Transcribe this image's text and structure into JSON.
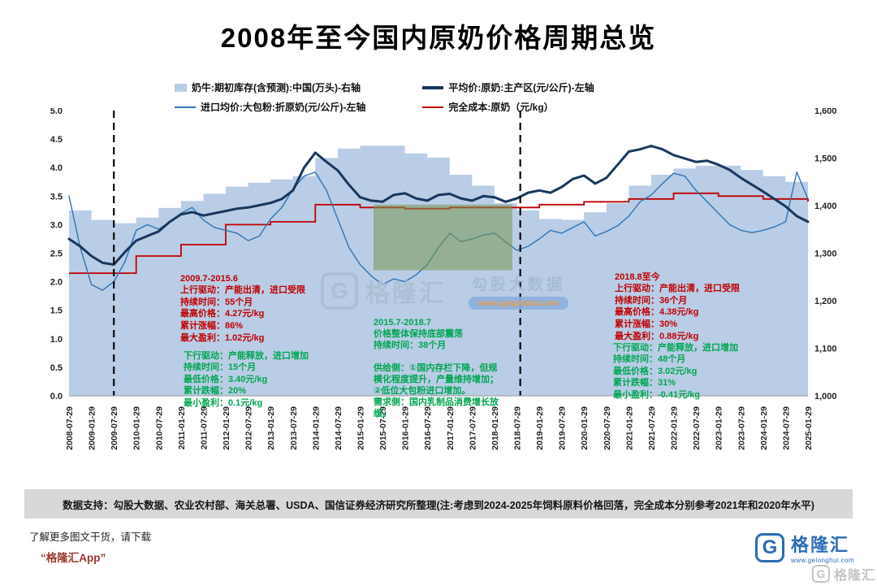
{
  "title": "2008年至今国内原奶价格周期总览",
  "chart_data": {
    "type": "combo",
    "title": "2008年至今国内原奶价格周期总览",
    "x_labels": [
      "2008-07-29",
      "2009-01-29",
      "2009-07-29",
      "2010-01-29",
      "2010-07-29",
      "2011-01-29",
      "2011-07-29",
      "2012-01-29",
      "2012-07-29",
      "2013-01-29",
      "2013-07-29",
      "2014-01-29",
      "2014-07-29",
      "2015-01-29",
      "2015-07-29",
      "2016-01-29",
      "2016-07-29",
      "2017-01-29",
      "2017-07-29",
      "2018-01-29",
      "2018-07-29",
      "2019-01-29",
      "2019-07-29",
      "2020-01-29",
      "2020-07-29",
      "2021-01-29",
      "2021-07-29",
      "2022-01-29",
      "2022-07-29",
      "2023-01-29",
      "2023-07-29",
      "2024-01-29",
      "2024-07-29",
      "2025-01-29"
    ],
    "left_axis": {
      "min": 0,
      "max": 5,
      "ticks": [
        "0.0",
        "0.5",
        "1.0",
        "1.5",
        "2.0",
        "2.5",
        "3.0",
        "3.5",
        "4.0",
        "4.5",
        "5.0"
      ],
      "tick_values": [
        0,
        0.5,
        1,
        1.5,
        2,
        2.5,
        3,
        3.5,
        4,
        4.5,
        5
      ]
    },
    "right_axis": {
      "min": 1000,
      "max": 1600,
      "ticks": [
        "1,000",
        "1,100",
        "1,200",
        "1,300",
        "1,400",
        "1,500",
        "1,600"
      ],
      "tick_values": [
        1000,
        1100,
        1200,
        1300,
        1400,
        1500,
        1600
      ]
    },
    "series": [
      {
        "name": "奶牛:期初库存(含预测):中国(万头)-右轴",
        "type": "step-area",
        "axis": "right",
        "color": "#b9cde6",
        "width": 0,
        "values": [
          1390,
          1370,
          1363,
          1375,
          1395,
          1410,
          1425,
          1440,
          1448,
          1455,
          1462,
          1500,
          1520,
          1526,
          1526,
          1510,
          1501,
          1465,
          1442,
          1405,
          1390,
          1372,
          1370,
          1386,
          1405,
          1442,
          1465,
          1478,
          1484,
          1484,
          1475,
          1462,
          1450,
          1442
        ]
      },
      {
        "name": "平均价:原奶:主产区(元/公斤)-左轴",
        "type": "line",
        "axis": "left",
        "color": "#17375e",
        "width": 3,
        "values": [
          2.75,
          2.62,
          2.45,
          2.33,
          2.3,
          2.52,
          2.72,
          2.8,
          2.88,
          3.05,
          3.18,
          3.22,
          3.16,
          3.2,
          3.24,
          3.28,
          3.3,
          3.34,
          3.38,
          3.45,
          3.6,
          4.0,
          4.26,
          4.1,
          3.95,
          3.7,
          3.48,
          3.42,
          3.4,
          3.52,
          3.55,
          3.46,
          3.42,
          3.52,
          3.54,
          3.46,
          3.42,
          3.5,
          3.48,
          3.4,
          3.46,
          3.56,
          3.6,
          3.56,
          3.66,
          3.8,
          3.86,
          3.72,
          3.82,
          4.05,
          4.28,
          4.32,
          4.38,
          4.32,
          4.22,
          4.16,
          4.1,
          4.12,
          4.05,
          3.96,
          3.82,
          3.7,
          3.58,
          3.45,
          3.32,
          3.15,
          3.05
        ]
      },
      {
        "name": "进口均价:大包粉:折原奶(元/公斤)-左轴",
        "type": "line",
        "axis": "left",
        "color": "#2e75b6",
        "width": 1.4,
        "values": [
          3.5,
          2.6,
          1.95,
          1.85,
          2.0,
          2.35,
          2.9,
          3.0,
          2.92,
          3.05,
          3.2,
          3.3,
          3.08,
          2.95,
          2.9,
          2.85,
          2.72,
          2.8,
          3.1,
          3.3,
          3.62,
          3.85,
          3.92,
          3.6,
          3.1,
          2.6,
          2.3,
          2.1,
          1.95,
          2.05,
          2.0,
          2.12,
          2.3,
          2.6,
          2.85,
          2.7,
          2.75,
          2.82,
          2.85,
          2.7,
          2.55,
          2.62,
          2.75,
          2.9,
          2.85,
          2.95,
          3.05,
          2.8,
          2.88,
          2.98,
          3.15,
          3.4,
          3.52,
          3.72,
          3.9,
          3.85,
          3.6,
          3.4,
          3.2,
          3.0,
          2.9,
          2.86,
          2.9,
          2.96,
          3.05,
          3.92,
          3.45
        ]
      },
      {
        "name": "完全成本:原奶（元/kg）",
        "type": "step-line",
        "axis": "left",
        "color": "#c00000",
        "width": 1.8,
        "values": [
          2.15,
          2.15,
          2.15,
          2.45,
          2.45,
          2.65,
          2.65,
          3.0,
          3.0,
          3.05,
          3.05,
          3.35,
          3.35,
          3.3,
          3.3,
          3.28,
          3.28,
          3.3,
          3.3,
          3.3,
          3.3,
          3.35,
          3.35,
          3.4,
          3.4,
          3.45,
          3.45,
          3.55,
          3.55,
          3.5,
          3.5,
          3.45,
          3.45,
          3.4
        ]
      }
    ],
    "markers": {
      "cycle_dividers_ticks": [
        2,
        20.15
      ],
      "highlight_box": {
        "tick_start": 13.6,
        "tick_end": 19.8,
        "value_low": 2.2,
        "value_high": 3.35,
        "color": "rgba(118,152,78,0.55)"
      }
    }
  },
  "annotations": [
    {
      "period": "2009.7-2015.6",
      "tone": "up",
      "lines": [
        "上行驱动：产能出清，进口受限",
        "持续时间：55个月",
        "最高价格：4.27元/kg",
        "累计涨幅：86%",
        "最大盈利：1.02元/kg"
      ]
    },
    {
      "period": "",
      "tone": "down",
      "lines": [
        "下行驱动：产能释放，进口增加",
        "持续时间：15个月",
        "最低价格：3.40元/kg",
        "累计跌幅：20%",
        "最小盈利：0.1元/kg"
      ]
    },
    {
      "period": "2015.7-2018.7",
      "tone": "flat",
      "lines": [
        "价格整体保持底部震荡",
        "持续时间：38个月",
        "",
        "供给侧：①国内存栏下降，但规模化程度提升，产量维持增加；②低位大包粉进口增加。",
        "需求侧：国内乳制品消费增长放缓。"
      ]
    },
    {
      "period": "2018.8至今",
      "tone": "up",
      "lines": [
        "上行驱动：产能出清，进口受限",
        "持续时间：36个月",
        "最高价格：4.38元/kg",
        "累计涨幅：30%",
        "最大盈利：0.88元/kg"
      ]
    },
    {
      "period": "",
      "tone": "down",
      "lines": [
        "下行驱动：产能释放，进口增加",
        "持续时间：48个月",
        "最低价格：3.02元/kg",
        "累计跌幅：31%",
        "最小盈利：-0.41元/kg"
      ]
    }
  ],
  "watermark": {
    "logo_letter": "G",
    "brand": "格隆汇",
    "product": "勾股大数据",
    "url": "www.gogudata.com"
  },
  "source_bar": "数据支持：勾股大数据、农业农村部、海关总署、USDA、国信证券经济研究所整理(注:考虑到2024-2025年饲料原料价格回落，完全成本分别参考2021年和2020年水平)",
  "footer": {
    "promo_line1": "了解更多图文干货，请下载",
    "promo_line2": "“格隆汇App”",
    "logo_letter": "G",
    "brand": "格隆汇",
    "brand_url": "www.gelonghui.com",
    "corner_brand": "格隆汇"
  }
}
